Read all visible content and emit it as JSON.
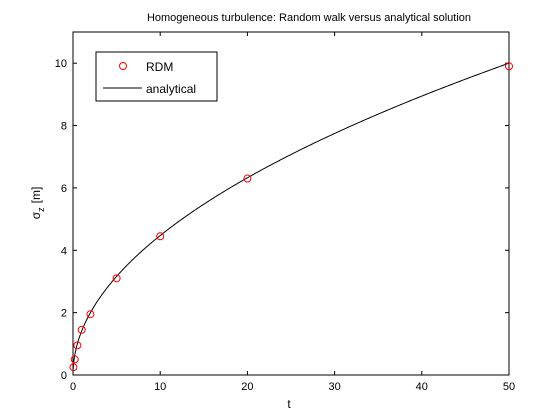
{
  "chart_data": {
    "type": "scatter",
    "title": "Homogeneous turbulence: Random walk versus analytical solution",
    "xlabel": "t",
    "ylabel": "σ",
    "ylabel_sub": "z",
    "ylabel_unit": "[m]",
    "xlim": [
      0,
      50
    ],
    "ylim": [
      0,
      11
    ],
    "xticks": [
      0,
      10,
      20,
      30,
      40,
      50
    ],
    "yticks": [
      0,
      2,
      4,
      6,
      8,
      10
    ],
    "grid": false,
    "legend_position": "top-left",
    "series": [
      {
        "name": "RDM",
        "kind": "markers",
        "marker": "circle",
        "color": "#ff0000",
        "points": [
          {
            "x": 0.05,
            "y": 0.25
          },
          {
            "x": 0.2,
            "y": 0.5
          },
          {
            "x": 0.5,
            "y": 0.95
          },
          {
            "x": 1,
            "y": 1.45
          },
          {
            "x": 2,
            "y": 1.95
          },
          {
            "x": 5,
            "y": 3.1
          },
          {
            "x": 10,
            "y": 4.45
          },
          {
            "x": 20,
            "y": 6.3
          },
          {
            "x": 50,
            "y": 9.9
          }
        ]
      },
      {
        "name": "analytical",
        "kind": "line",
        "color": "#000000",
        "formula": "sqrt(2 t)"
      }
    ]
  }
}
